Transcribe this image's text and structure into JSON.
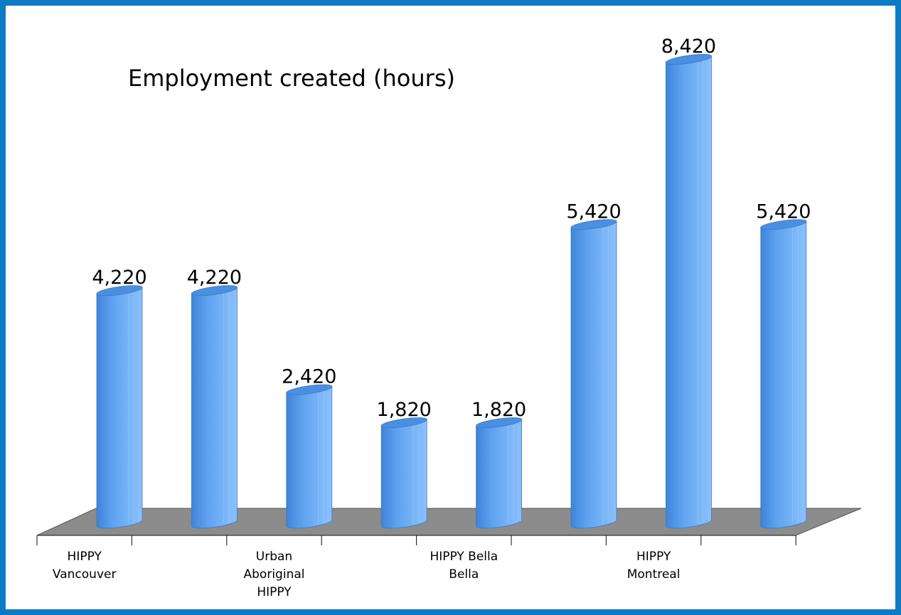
{
  "chart_data": {
    "type": "bar",
    "bar_shape": "cylinder",
    "title": "Employment created (hours)",
    "categories": [
      [
        "HIPPY",
        "Vancouver"
      ],
      [],
      [
        "Urban",
        "Aboriginal",
        "HIPPY"
      ],
      [],
      [
        "HIPPY Bella",
        "Bella"
      ],
      [],
      [
        "HIPPY",
        "Montreal"
      ],
      []
    ],
    "values": [
      4220,
      4220,
      2420,
      1820,
      1820,
      5420,
      8420,
      5420
    ],
    "value_labels": [
      "4,220",
      "4,220",
      "2,420",
      "1,820",
      "1,820",
      "5,420",
      "8,420",
      "5,420"
    ],
    "ylim": [
      0,
      8420
    ],
    "grid": false,
    "legend": "none",
    "colors": {
      "bar": "#5ea2f0",
      "bar_dark": "#3f84d8",
      "bar_light": "#8cc0fb",
      "floor": "#8c8c8c",
      "frame": "#0d7ac4"
    }
  }
}
